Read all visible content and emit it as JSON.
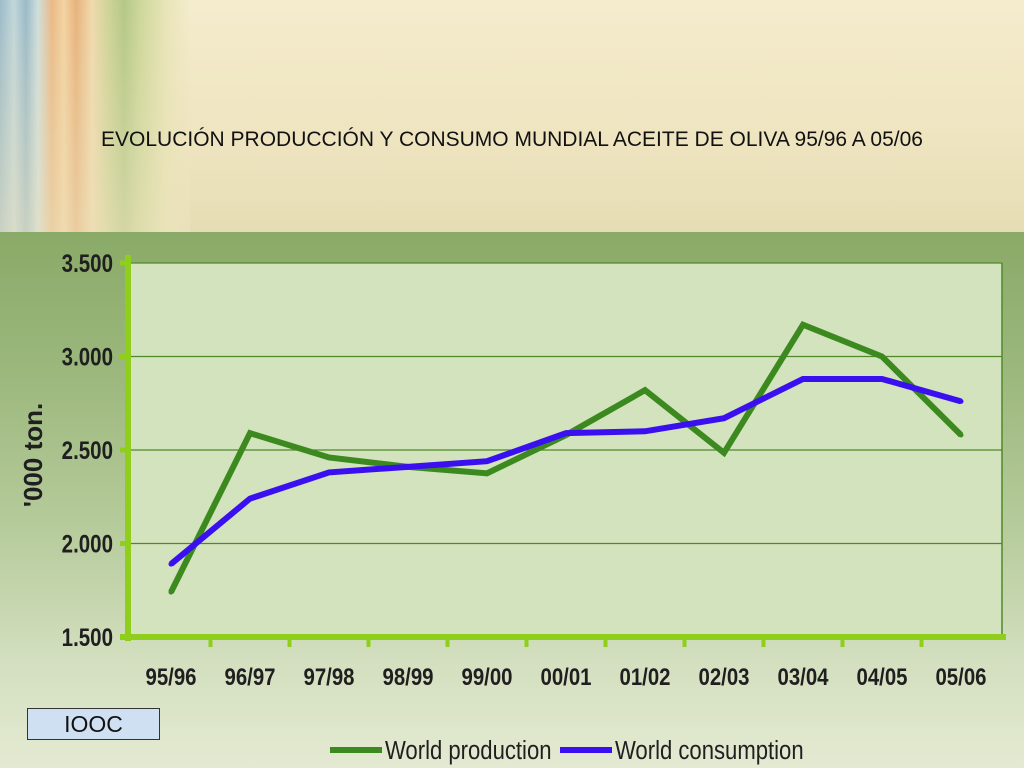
{
  "title": "EVOLUCIÓN PRODUCCIÓN Y CONSUMO MUNDIAL ACEITE DE OLIVA 95/96 A 05/06",
  "source_label": "IOOC",
  "colors": {
    "production": "#3c8a1f",
    "consumption": "#3a10f0",
    "axis": "#8fcf1c",
    "grid": "#4f8a2a",
    "plot_bg": "#d2e3bd"
  },
  "chart_data": {
    "type": "line",
    "title": "",
    "xlabel": "",
    "ylabel": "'000 ton.",
    "categories": [
      "95/96",
      "96/97",
      "97/98",
      "98/99",
      "99/00",
      "00/01",
      "01/02",
      "02/03",
      "03/04",
      "04/05",
      "05/06"
    ],
    "ylim": [
      1500,
      3500
    ],
    "yticks": [
      1500,
      2000,
      2500,
      3000,
      3500
    ],
    "ytick_labels": [
      "1.500",
      "2.000",
      "2.500",
      "3.000",
      "3.500"
    ],
    "grid": true,
    "legend_position": "bottom",
    "series": [
      {
        "name": "World production",
        "color": "#3c8a1f",
        "values": [
          1740,
          2590,
          2460,
          2410,
          2375,
          2580,
          2820,
          2485,
          3170,
          3000,
          2580
        ]
      },
      {
        "name": "World consumption",
        "color": "#3a10f0",
        "values": [
          1890,
          2240,
          2380,
          2410,
          2440,
          2590,
          2600,
          2670,
          2880,
          2880,
          2760
        ]
      }
    ]
  }
}
